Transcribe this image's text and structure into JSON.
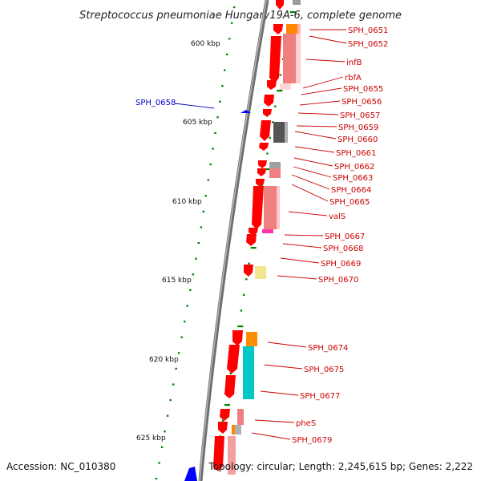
{
  "title": "Streptococcus pneumoniae Hungary19A-6, complete genome",
  "accession": "Accession: NC_010380",
  "topology": "Topology: circular; Length: 2,245,615 bp; Genes: 2,222",
  "colors": {
    "backbone": "#808080",
    "gene": "#ff0000",
    "gene_label": "#cc0000",
    "reverse_gene": "#0000ff",
    "tick": "#008000",
    "leader": "#cc0000"
  },
  "scale_labels": [
    "600 kbp",
    "605 kbp",
    "610 kbp",
    "615 kbp",
    "620 kbp",
    "625 kbp"
  ],
  "gene_labels": [
    "SPH_0651",
    "SPH_0652",
    "infB",
    "rbfA",
    "SPH_0655",
    "SPH_0656",
    "SPH_0657",
    "SPH_0659",
    "SPH_0660",
    "SPH_0661",
    "SPH_0662",
    "SPH_0663",
    "SPH_0664",
    "SPH_0665",
    "valS",
    "SPH_0667",
    "SPH_0668",
    "SPH_0669",
    "SPH_0670",
    "SPH_0674",
    "SPH_0675",
    "SPH_0677",
    "pheS",
    "SPH_0679"
  ],
  "reverse_gene_label": "SPH_0658"
}
